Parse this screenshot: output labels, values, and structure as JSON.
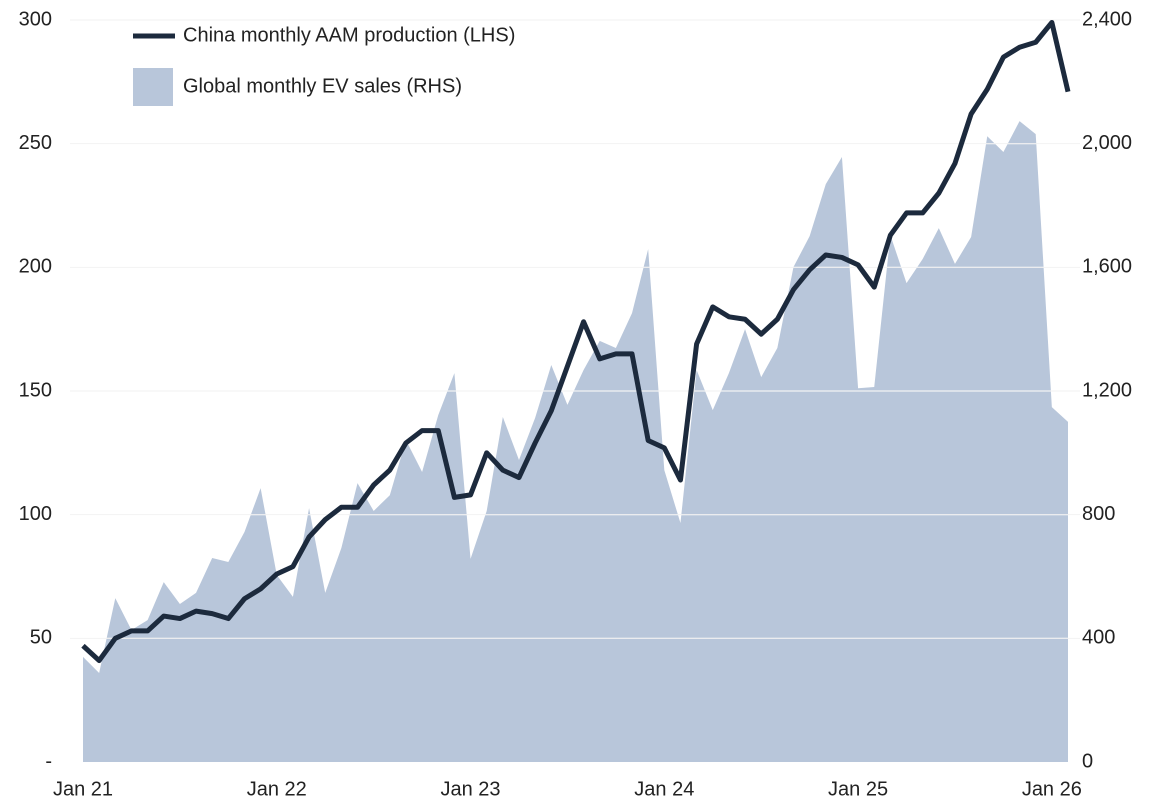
{
  "chart_data": {
    "type": "line_area",
    "categories": [
      "Jan 21",
      null,
      null,
      null,
      null,
      null,
      null,
      null,
      null,
      null,
      null,
      null,
      "Jan 22",
      null,
      null,
      null,
      null,
      null,
      null,
      null,
      null,
      null,
      null,
      null,
      "Jan 23",
      null,
      null,
      null,
      null,
      null,
      null,
      null,
      null,
      null,
      null,
      null,
      "Jan 24",
      null,
      null,
      null,
      null,
      null,
      null,
      null,
      null,
      null,
      null,
      null,
      "Jan 25",
      null,
      null,
      null,
      null,
      null,
      null,
      null,
      null,
      null,
      null,
      null,
      "Jan 26",
      null
    ],
    "series": [
      {
        "name": "China monthly AAM production (LHS)",
        "kind": "line",
        "color": "#1c2a3d",
        "values": [
          47,
          41,
          50,
          53,
          53,
          59,
          58,
          61,
          60,
          58,
          66,
          70,
          76,
          79,
          91,
          98,
          103,
          103,
          112,
          118,
          129,
          134,
          134,
          107,
          108,
          125,
          118,
          115,
          129,
          142,
          160,
          178,
          163,
          165,
          165,
          130,
          127,
          114,
          169,
          184,
          180,
          179,
          173,
          179,
          191,
          199,
          205,
          204,
          201,
          192,
          213,
          222,
          222,
          230,
          242,
          262,
          272,
          285,
          289,
          291,
          299,
          271
        ]
      },
      {
        "name": "Global monthly EV sales (RHS)",
        "kind": "area",
        "axis": "y2",
        "color": "#b8c6da",
        "values": [
          340,
          288,
          530,
          427,
          459,
          582,
          511,
          547,
          660,
          647,
          744,
          886,
          605,
          534,
          821,
          547,
          692,
          902,
          812,
          863,
          1041,
          938,
          1122,
          1258,
          657,
          812,
          1116,
          977,
          1113,
          1284,
          1155,
          1268,
          1362,
          1339,
          1452,
          1659,
          944,
          773,
          1268,
          1138,
          1258,
          1400,
          1245,
          1339,
          1601,
          1701,
          1869,
          1957,
          1209,
          1213,
          1704,
          1549,
          1627,
          1727,
          1611,
          1698,
          2024,
          1973,
          2073,
          2031,
          1148,
          1100
        ]
      }
    ],
    "ylim": [
      0,
      300
    ],
    "yticks": [
      {
        "value": 0,
        "label": "-"
      },
      50,
      100,
      150,
      200,
      250,
      300
    ],
    "y2lim": [
      0,
      2400
    ],
    "y2ticks": [
      0,
      400,
      800,
      {
        "value": 1200,
        "label": "1,200"
      },
      {
        "value": 1600,
        "label": "1,600"
      },
      {
        "value": 2000,
        "label": "2,000"
      },
      {
        "value": 2400,
        "label": "2,400"
      }
    ],
    "grid": true,
    "legend": "upper left"
  }
}
